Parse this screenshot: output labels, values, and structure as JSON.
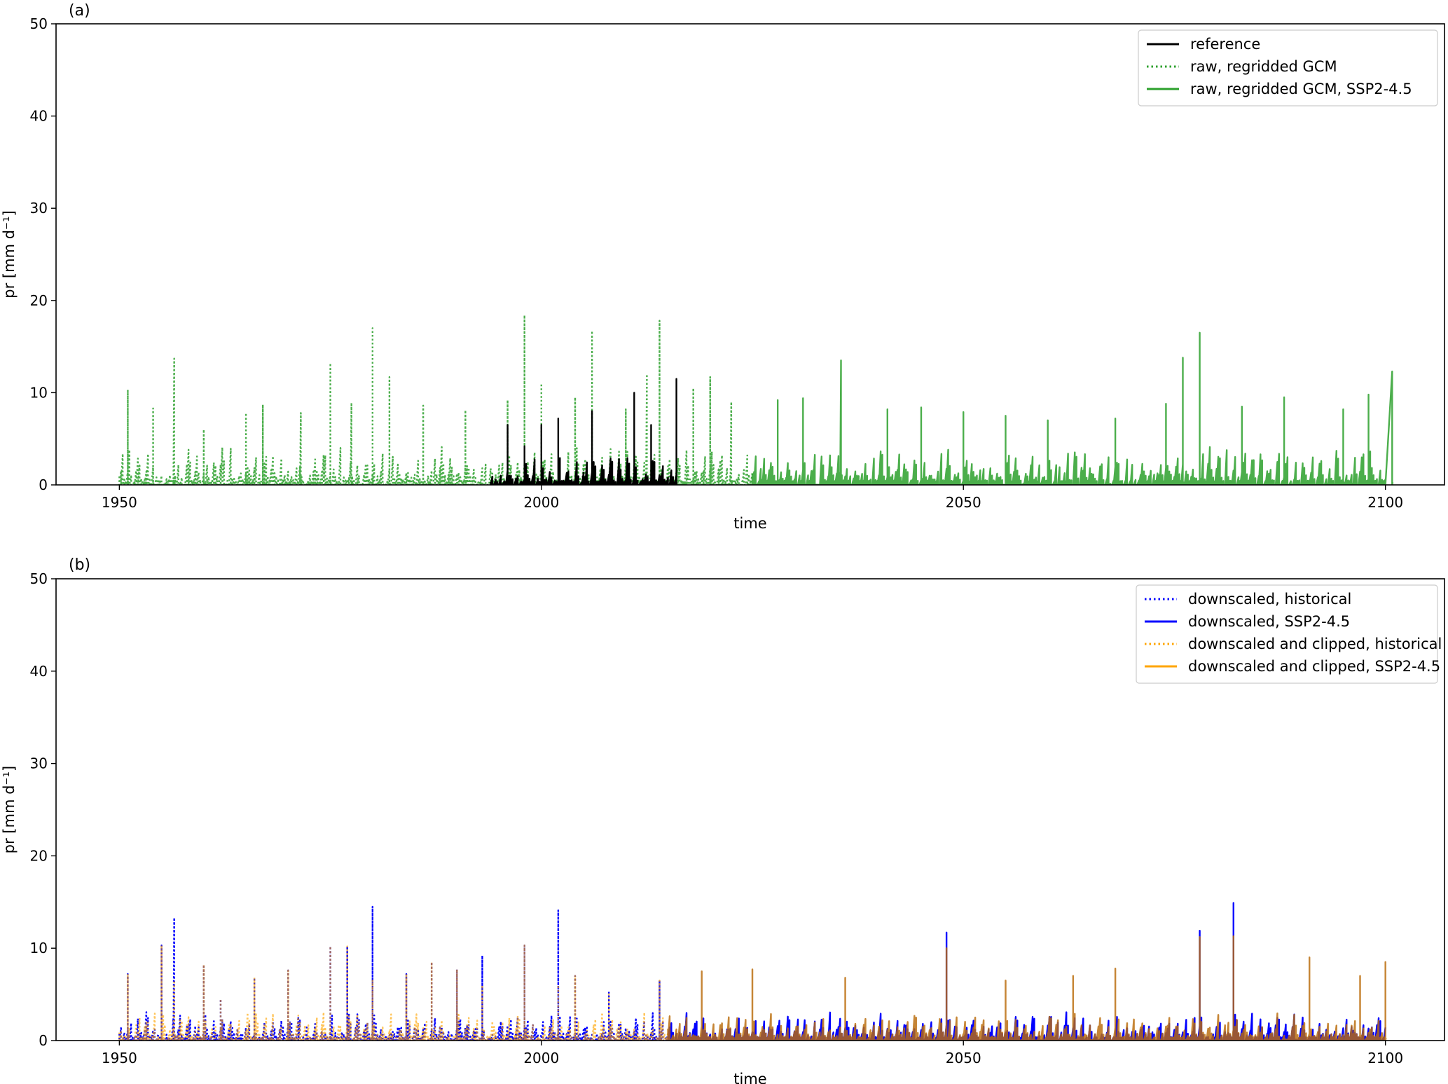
{
  "chart_data": [
    {
      "type": "line",
      "panel_label": "(a)",
      "xlabel": "time",
      "ylabel": "pr [mm d⁻¹]",
      "xlim": [
        1942.5,
        2107
      ],
      "ylim": [
        0,
        50
      ],
      "x_ticks": [
        1950,
        2000,
        2050,
        2100
      ],
      "y_ticks": [
        0,
        10,
        20,
        30,
        40,
        50
      ],
      "legend_position": "top-right",
      "series": [
        {
          "name": "raw, regridded GCM",
          "color": "#2ca02c",
          "style": "dotted",
          "start_year": 1950,
          "end_year": 2025,
          "baseline": 2,
          "spikes": [
            [
              1951,
              10.3
            ],
            [
              1954,
              8.3
            ],
            [
              1956.5,
              13.7
            ],
            [
              1960,
              6
            ],
            [
              1965,
              7.8
            ],
            [
              1967,
              8.7
            ],
            [
              1971.5,
              7.8
            ],
            [
              1975,
              13.2
            ],
            [
              1977.5,
              8.9
            ],
            [
              1980,
              17
            ],
            [
              1982,
              11.7
            ],
            [
              1986,
              8.6
            ],
            [
              1991,
              8.1
            ],
            [
              1996,
              9.2
            ],
            [
              1998,
              18.4
            ],
            [
              2000,
              11
            ],
            [
              2004,
              9.5
            ],
            [
              2006,
              16.7
            ],
            [
              2010,
              8.2
            ],
            [
              2012.5,
              12
            ],
            [
              2014,
              17.8
            ],
            [
              2018,
              10.5
            ],
            [
              2020,
              11.7
            ],
            [
              2022.5,
              9
            ]
          ]
        },
        {
          "name": "raw, regridded GCM, SSP2-4.5",
          "color": "#2ca02c",
          "style": "solid",
          "start_year": 2025,
          "end_year": 2100,
          "baseline": 2,
          "spikes": [
            [
              2028,
              9.2
            ],
            [
              2031,
              9.4
            ],
            [
              2035.5,
              13.5
            ],
            [
              2041,
              8.2
            ],
            [
              2045,
              8.4
            ],
            [
              2050,
              7.9
            ],
            [
              2055,
              7.5
            ],
            [
              2060,
              7
            ],
            [
              2068,
              7.2
            ],
            [
              2074,
              8.8
            ],
            [
              2076,
              13.8
            ],
            [
              2078,
              16.5
            ],
            [
              2083,
              8.5
            ],
            [
              2088,
              9.5
            ],
            [
              2095,
              8.2
            ],
            [
              2098,
              9.8
            ],
            [
              2100.8,
              12.3
            ]
          ]
        },
        {
          "name": "reference",
          "color": "#000000",
          "style": "solid",
          "start_year": 1994,
          "end_year": 2016,
          "baseline": 1.5,
          "spikes": [
            [
              1996,
              6.5
            ],
            [
              1998,
              4.2
            ],
            [
              2000,
              6.5
            ],
            [
              2002,
              7.2
            ],
            [
              2006,
              8
            ],
            [
              2011,
              10
            ],
            [
              2013,
              6.5
            ],
            [
              2016,
              11.5
            ]
          ]
        }
      ]
    },
    {
      "type": "line",
      "panel_label": "(b)",
      "xlabel": "time",
      "ylabel": "pr [mm d⁻¹]",
      "xlim": [
        1942.5,
        2107
      ],
      "ylim": [
        0,
        50
      ],
      "x_ticks": [
        1950,
        2000,
        2050,
        2100
      ],
      "y_ticks": [
        0,
        10,
        20,
        30,
        40,
        50
      ],
      "legend_position": "top-right",
      "series": [
        {
          "name": "downscaled, historical",
          "color": "#0000ff",
          "style": "dotted",
          "start_year": 1950,
          "end_year": 2015,
          "baseline": 1.5,
          "spikes": [
            [
              1951,
              7.2
            ],
            [
              1955,
              10.3
            ],
            [
              1956.5,
              13.3
            ],
            [
              1960,
              8.2
            ],
            [
              1962,
              4.5
            ],
            [
              1966,
              6.8
            ],
            [
              1970,
              7.6
            ],
            [
              1975,
              10.2
            ],
            [
              1977,
              10.2
            ],
            [
              1980,
              14.5
            ],
            [
              1984,
              7.2
            ],
            [
              1987,
              8.5
            ],
            [
              1990,
              7.7
            ],
            [
              1993,
              9.2
            ],
            [
              1998,
              10.3
            ],
            [
              2002,
              14.1
            ],
            [
              2004,
              7
            ],
            [
              2008,
              5.2
            ],
            [
              2014,
              6.5
            ]
          ]
        },
        {
          "name": "downscaled, SSP2-4.5",
          "color": "#0000ff",
          "style": "solid",
          "start_year": 2015,
          "end_year": 2100,
          "baseline": 1.5,
          "spikes": [
            [
              2048,
              11.7
            ],
            [
              2078,
              11.9
            ],
            [
              2082,
              14.9
            ]
          ]
        },
        {
          "name": "downscaled and clipped, historical",
          "color": "#ffa500",
          "style": "dotted",
          "start_year": 1950,
          "end_year": 2015,
          "baseline": 1.5,
          "spikes": [
            [
              1951,
              7.2
            ],
            [
              1955,
              10.3
            ],
            [
              1956.5,
              6.5
            ],
            [
              1960,
              8.2
            ],
            [
              1962,
              4.5
            ],
            [
              1966,
              6.8
            ],
            [
              1970,
              7.6
            ],
            [
              1975,
              10.2
            ],
            [
              1977,
              10.2
            ],
            [
              1980,
              6.5
            ],
            [
              1984,
              7.2
            ],
            [
              1987,
              8.5
            ],
            [
              1990,
              7.7
            ],
            [
              1993,
              6
            ],
            [
              1998,
              10.3
            ],
            [
              2002,
              6
            ],
            [
              2004,
              7
            ],
            [
              2008,
              5.2
            ],
            [
              2014,
              6.5
            ]
          ]
        },
        {
          "name": "downscaled and clipped, SSP2-4.5",
          "color": "#ffa500",
          "style": "solid",
          "start_year": 2015,
          "end_year": 2100,
          "baseline": 1.5,
          "spikes": [
            [
              2019,
              7.5
            ],
            [
              2025,
              7.7
            ],
            [
              2036,
              6.8
            ],
            [
              2048,
              10
            ],
            [
              2055,
              6.5
            ],
            [
              2063,
              7
            ],
            [
              2068,
              7.8
            ],
            [
              2078,
              11.2
            ],
            [
              2082,
              11.3
            ],
            [
              2091,
              9
            ],
            [
              2097,
              7
            ],
            [
              2100,
              8.5
            ]
          ]
        }
      ]
    }
  ]
}
